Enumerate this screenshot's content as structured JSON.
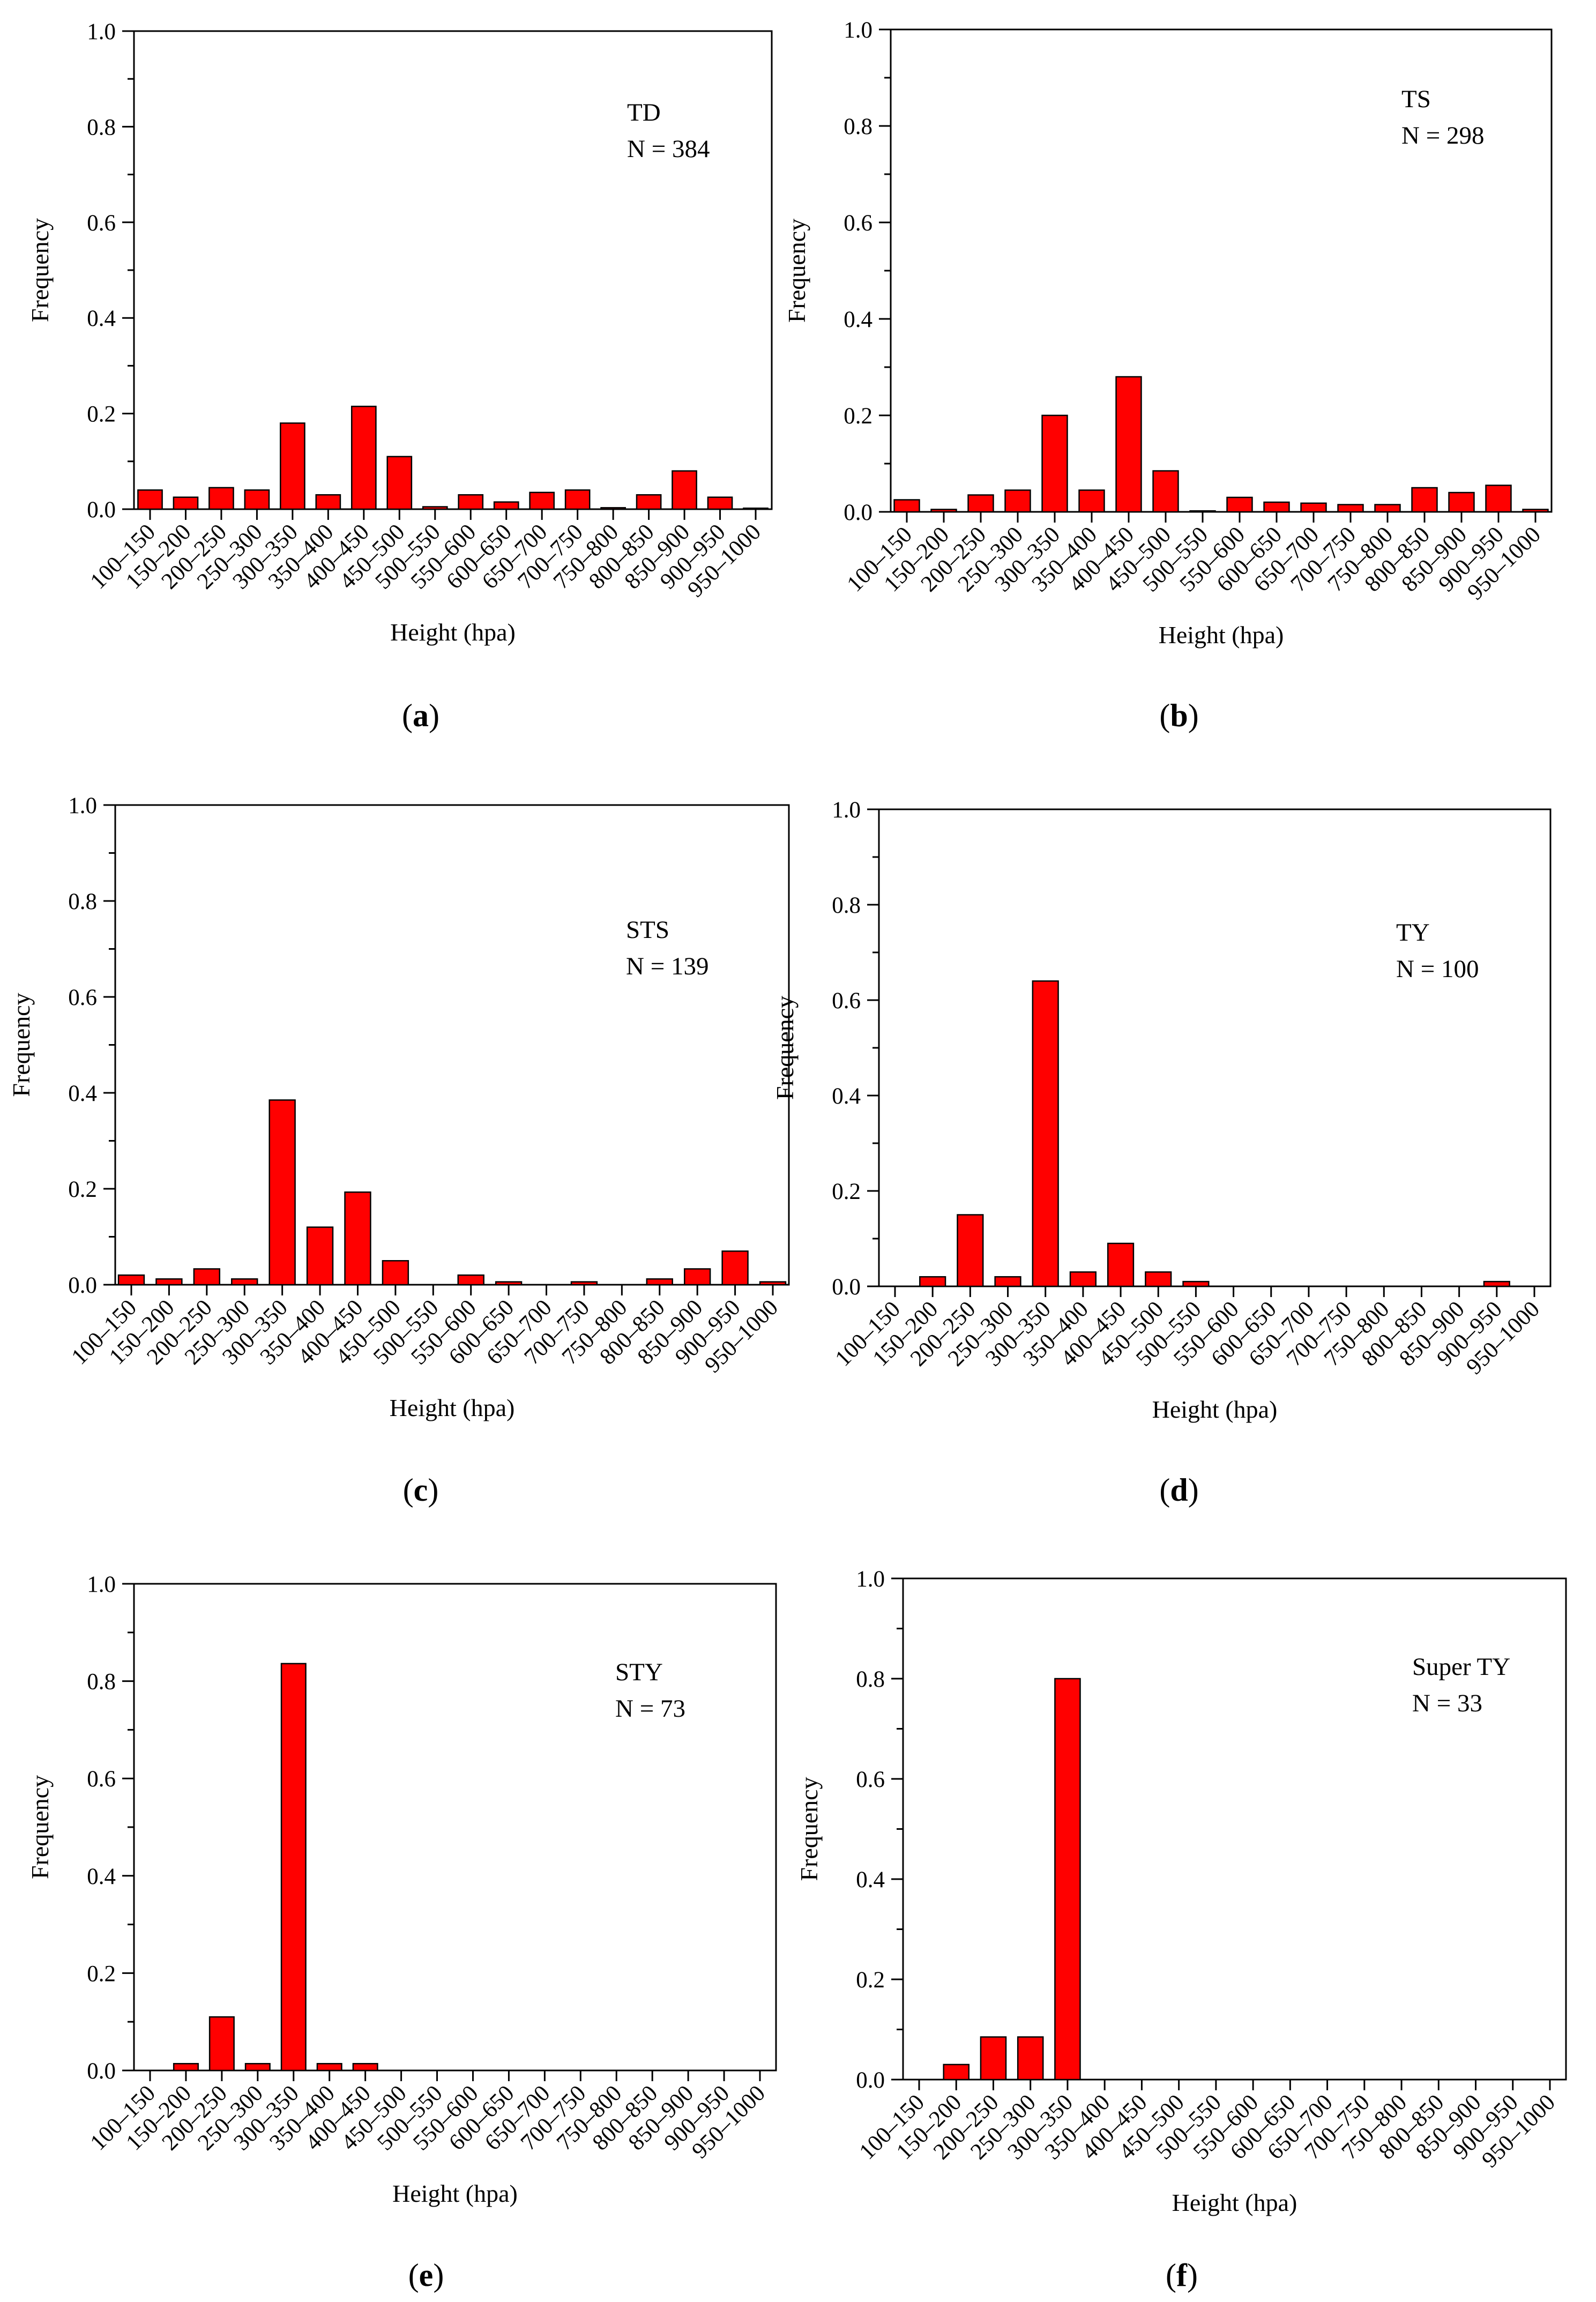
{
  "chart_data": [
    {
      "type": "bar",
      "panel_label": "a",
      "categories": [
        "100–150",
        "150–200",
        "200–250",
        "250–300",
        "300–350",
        "350–400",
        "400–450",
        "450–500",
        "500–550",
        "550–600",
        "600–650",
        "650–700",
        "700–750",
        "750–800",
        "800–850",
        "850–900",
        "900–950",
        "950–1000"
      ],
      "values": [
        0.04,
        0.025,
        0.045,
        0.04,
        0.18,
        0.03,
        0.215,
        0.11,
        0.005,
        0.03,
        0.015,
        0.035,
        0.04,
        0.003,
        0.03,
        0.08,
        0.025,
        0.002
      ],
      "annotation": {
        "name": "TD",
        "n": "N = 384"
      },
      "xlabel": "Height (hpa)",
      "ylabel": "Frequency",
      "ylim": [
        0,
        1.0
      ],
      "yticks": [
        "0.0",
        "0.2",
        "0.4",
        "0.6",
        "0.8",
        "1.0"
      ],
      "bar_color": "#ff0000"
    },
    {
      "type": "bar",
      "panel_label": "b",
      "categories": [
        "100–150",
        "150–200",
        "200–250",
        "250–300",
        "300–350",
        "350–400",
        "400–450",
        "450–500",
        "500–550",
        "550–600",
        "600–650",
        "650–700",
        "700–750",
        "750–800",
        "800–850",
        "850–900",
        "900–950",
        "950–1000"
      ],
      "values": [
        0.025,
        0.005,
        0.035,
        0.045,
        0.2,
        0.045,
        0.28,
        0.085,
        0.002,
        0.03,
        0.02,
        0.018,
        0.015,
        0.015,
        0.05,
        0.04,
        0.055,
        0.005
      ],
      "annotation": {
        "name": "TS",
        "n": "N = 298"
      },
      "xlabel": "Height (hpa)",
      "ylabel": "Frequency",
      "ylim": [
        0,
        1.0
      ],
      "yticks": [
        "0.0",
        "0.2",
        "0.4",
        "0.6",
        "0.8",
        "1.0"
      ],
      "bar_color": "#ff0000"
    },
    {
      "type": "bar",
      "panel_label": "c",
      "categories": [
        "100–150",
        "150–200",
        "200–250",
        "250–300",
        "300–350",
        "350–400",
        "400–450",
        "450–500",
        "500–550",
        "550–600",
        "600–650",
        "650–700",
        "700–750",
        "750–800",
        "800–850",
        "850–900",
        "900–950",
        "950–1000"
      ],
      "values": [
        0.02,
        0.012,
        0.033,
        0.012,
        0.385,
        0.12,
        0.193,
        0.05,
        0,
        0.02,
        0.006,
        0,
        0.006,
        0,
        0.012,
        0.033,
        0.07,
        0.006
      ],
      "annotation": {
        "name": "STS",
        "n": "N = 139"
      },
      "xlabel": "Height (hpa)",
      "ylabel": "Frequency",
      "ylim": [
        0,
        1.0
      ],
      "yticks": [
        "0.0",
        "0.2",
        "0.4",
        "0.6",
        "0.8",
        "1.0"
      ],
      "bar_color": "#ff0000"
    },
    {
      "type": "bar",
      "panel_label": "d",
      "categories": [
        "100–150",
        "150–200",
        "200–250",
        "250–300",
        "300–350",
        "350–400",
        "400–450",
        "450–500",
        "500–550",
        "550–600",
        "600–650",
        "650–700",
        "700–750",
        "750–800",
        "800–850",
        "850–900",
        "900–950",
        "950–1000"
      ],
      "values": [
        0,
        0.02,
        0.15,
        0.02,
        0.64,
        0.03,
        0.09,
        0.03,
        0.01,
        0,
        0,
        0,
        0,
        0,
        0,
        0,
        0.01,
        0
      ],
      "annotation": {
        "name": "TY",
        "n": "N = 100"
      },
      "xlabel": "Height (hpa)",
      "ylabel": "Frequency",
      "ylim": [
        0,
        1.0
      ],
      "yticks": [
        "0.0",
        "0.2",
        "0.4",
        "0.6",
        "0.8",
        "1.0"
      ],
      "bar_color": "#ff0000"
    },
    {
      "type": "bar",
      "panel_label": "e",
      "categories": [
        "100–150",
        "150–200",
        "200–250",
        "250–300",
        "300–350",
        "350–400",
        "400–450",
        "450–500",
        "500–550",
        "550–600",
        "600–650",
        "650–700",
        "700–750",
        "750–800",
        "800–850",
        "850–900",
        "900–950",
        "950–1000"
      ],
      "values": [
        0,
        0.014,
        0.11,
        0.014,
        0.836,
        0.014,
        0.014,
        0,
        0,
        0,
        0,
        0,
        0,
        0,
        0,
        0,
        0,
        0
      ],
      "annotation": {
        "name": "STY",
        "n": "N = 73"
      },
      "xlabel": "Height (hpa)",
      "ylabel": "Frequency",
      "ylim": [
        0,
        1.0
      ],
      "yticks": [
        "0.0",
        "0.2",
        "0.4",
        "0.6",
        "0.8",
        "1.0"
      ],
      "bar_color": "#ff0000"
    },
    {
      "type": "bar",
      "panel_label": "f",
      "categories": [
        "100–150",
        "150–200",
        "200–250",
        "250–300",
        "300–350",
        "350–400",
        "400–450",
        "450–500",
        "500–550",
        "550–600",
        "600–650",
        "650–700",
        "700–750",
        "750–800",
        "800–850",
        "850–900",
        "900–950",
        "950–1000"
      ],
      "values": [
        0,
        0.03,
        0.085,
        0.085,
        0.8,
        0,
        0,
        0,
        0,
        0,
        0,
        0,
        0,
        0,
        0,
        0,
        0,
        0
      ],
      "annotation": {
        "name": "Super TY",
        "n": "N = 33"
      },
      "xlabel": "Height (hpa)",
      "ylabel": "Frequency",
      "ylim": [
        0,
        1.0
      ],
      "yticks": [
        "0.0",
        "0.2",
        "0.4",
        "0.6",
        "0.8",
        "1.0"
      ],
      "bar_color": "#ff0000"
    }
  ]
}
